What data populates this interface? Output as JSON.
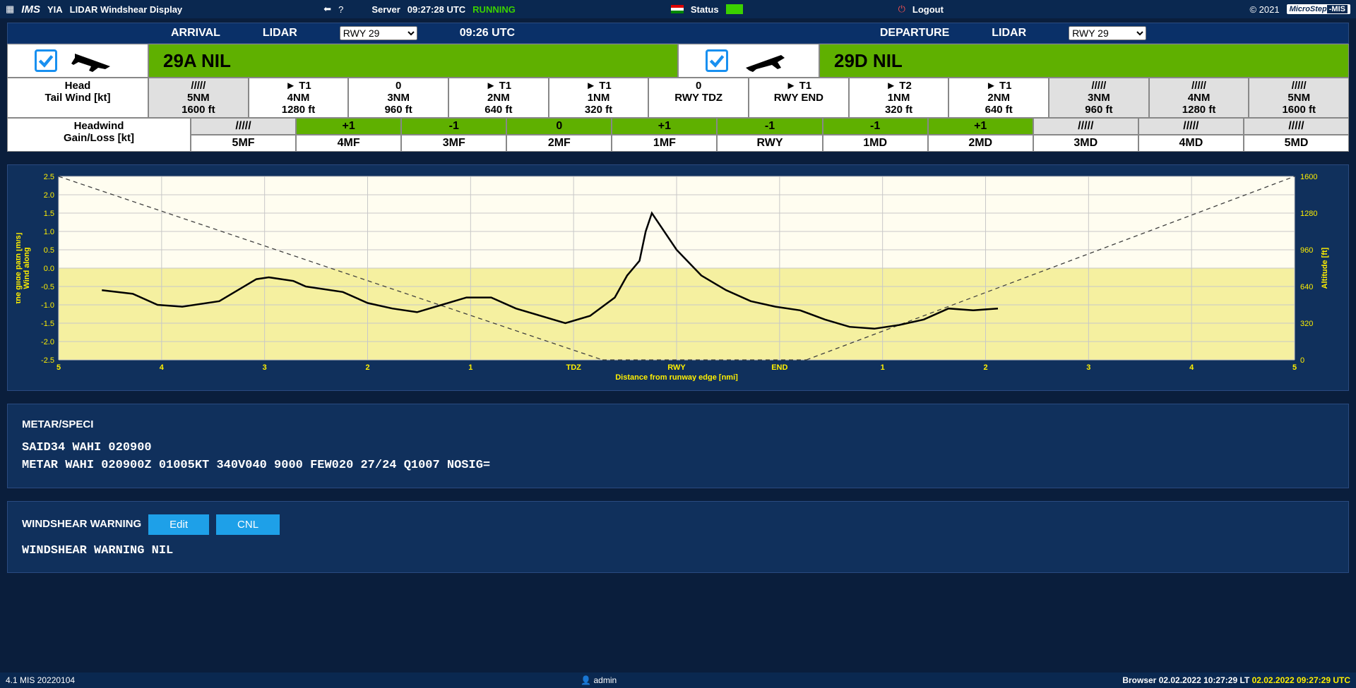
{
  "topbar": {
    "brand": "IMS",
    "site": "YIA",
    "title": "LIDAR Windshear Display",
    "server_label": "Server",
    "server_time": "09:27:28 UTC",
    "server_state": "RUNNING",
    "status_label": "Status",
    "logout": "Logout",
    "copyright": "© 2021",
    "ms_brand_a": "MicroStep",
    "ms_brand_b": "-MIS"
  },
  "mode": {
    "arrival_label": "ARRIVAL",
    "departure_label": "DEPARTURE",
    "lidar": "LIDAR",
    "rwy_selected": "RWY 29",
    "time": "09:26 UTC"
  },
  "arrival_badge": "29A NIL",
  "departure_badge": "29D NIL",
  "head_label": "Head",
  "tail_label": "Tail Wind [kt]",
  "headwind_label": "Headwind",
  "gainloss_label": "Gain/Loss [kt]",
  "cells": [
    {
      "l1": "/////",
      "l2": "5NM",
      "l3": "1600 ft",
      "gray": true
    },
    {
      "l1": "► T1",
      "l2": "4NM",
      "l3": "1280 ft"
    },
    {
      "l1": "0",
      "l2": "3NM",
      "l3": "960 ft"
    },
    {
      "l1": "► T1",
      "l2": "2NM",
      "l3": "640 ft"
    },
    {
      "l1": "► T1",
      "l2": "1NM",
      "l3": "320 ft"
    },
    {
      "l1": "0",
      "l2": "RWY TDZ",
      "l3": ""
    },
    {
      "l1": "► T1",
      "l2": "RWY END",
      "l3": ""
    },
    {
      "l1": "► T2",
      "l2": "1NM",
      "l3": "320 ft"
    },
    {
      "l1": "► T1",
      "l2": "2NM",
      "l3": "640 ft"
    },
    {
      "l1": "/////",
      "l2": "3NM",
      "l3": "960 ft",
      "gray": true
    },
    {
      "l1": "/////",
      "l2": "4NM",
      "l3": "1280 ft",
      "gray": true
    },
    {
      "l1": "/////",
      "l2": "5NM",
      "l3": "1600 ft",
      "gray": true
    }
  ],
  "gainloss_top": [
    {
      "v": "/////",
      "c": "gray"
    },
    {
      "v": "+1",
      "c": "green"
    },
    {
      "v": "-1",
      "c": "green"
    },
    {
      "v": "0",
      "c": "green"
    },
    {
      "v": "+1",
      "c": "green"
    },
    {
      "v": "-1",
      "c": "green"
    },
    {
      "v": "-1",
      "c": "green"
    },
    {
      "v": "+1",
      "c": "green"
    },
    {
      "v": "/////",
      "c": "gray"
    },
    {
      "v": "/////",
      "c": "gray"
    },
    {
      "v": "/////",
      "c": "gray"
    }
  ],
  "gainloss_bot": [
    "5MF",
    "4MF",
    "3MF",
    "2MF",
    "1MF",
    "RWY",
    "1MD",
    "2MD",
    "3MD",
    "4MD",
    "5MD"
  ],
  "chart": {
    "type": "line",
    "title_left": "Wind along\nthe glide path [m/s]",
    "title_right": "Altitude [ft]",
    "title_bottom": "Distance from runway edge [nmi]",
    "ylim": [
      -2.5,
      2.5
    ],
    "ytick_step": 0.5,
    "y2_ticks": [
      0,
      320,
      640,
      960,
      1280,
      1600
    ],
    "x_labels": [
      "5",
      "4",
      "3",
      "2",
      "1",
      "TDZ",
      "RWY",
      "END",
      "1",
      "2",
      "3",
      "4",
      "5"
    ],
    "background_color": "#10305c",
    "plot_bg_top": "#fffdf0",
    "plot_bg_bottom": "#f5f0a0",
    "grid_color": "#c8c8c8",
    "line_color": "#000000",
    "dash_color": "#404040",
    "label_color": "#ffef00",
    "label_fontsize": 11,
    "wind_series_x": [
      0.035,
      0.06,
      0.08,
      0.1,
      0.13,
      0.16,
      0.17,
      0.19,
      0.2,
      0.23,
      0.25,
      0.27,
      0.29,
      0.31,
      0.33,
      0.35,
      0.37,
      0.39,
      0.41,
      0.43,
      0.45,
      0.46,
      0.47,
      0.475,
      0.48,
      0.5,
      0.52,
      0.54,
      0.56,
      0.58,
      0.6,
      0.62,
      0.64,
      0.66,
      0.68,
      0.7,
      0.72,
      0.74,
      0.76
    ],
    "wind_series_y": [
      -0.6,
      -0.7,
      -1.0,
      -1.05,
      -0.9,
      -0.3,
      -0.25,
      -0.35,
      -0.5,
      -0.65,
      -0.95,
      -1.1,
      -1.2,
      -1.0,
      -0.8,
      -0.8,
      -1.1,
      -1.3,
      -1.5,
      -1.3,
      -0.8,
      -0.2,
      0.2,
      1.0,
      1.5,
      0.5,
      -0.2,
      -0.6,
      -0.9,
      -1.05,
      -1.15,
      -1.4,
      -1.6,
      -1.65,
      -1.55,
      -1.4,
      -1.1,
      -1.15,
      -1.1
    ],
    "glide_left": {
      "x": [
        0,
        0.44
      ],
      "y": [
        2.5,
        -2.5
      ]
    },
    "glide_mid": {
      "x": [
        0.44,
        0.605
      ],
      "y": [
        -2.5,
        -2.5
      ]
    },
    "glide_right": {
      "x": [
        0.605,
        1.0
      ],
      "y": [
        -2.5,
        2.5
      ]
    }
  },
  "metar": {
    "title": "METAR/SPECI",
    "line1": "SAID34 WAHI 020900",
    "line2": "METAR WAHI 020900Z 01005KT 340V040 9000 FEW020 27/24 Q1007 NOSIG="
  },
  "warn": {
    "title": "WINDSHEAR WARNING",
    "edit": "Edit",
    "cnl": "CNL",
    "msg": "WINDSHEAR WARNING NIL"
  },
  "footer": {
    "version": "4.1 MIS 20220104",
    "user": "admin",
    "browser_label": "Browser",
    "lt": "02.02.2022 10:27:29 LT",
    "utc": "02.02.2022 09:27:29 UTC"
  }
}
